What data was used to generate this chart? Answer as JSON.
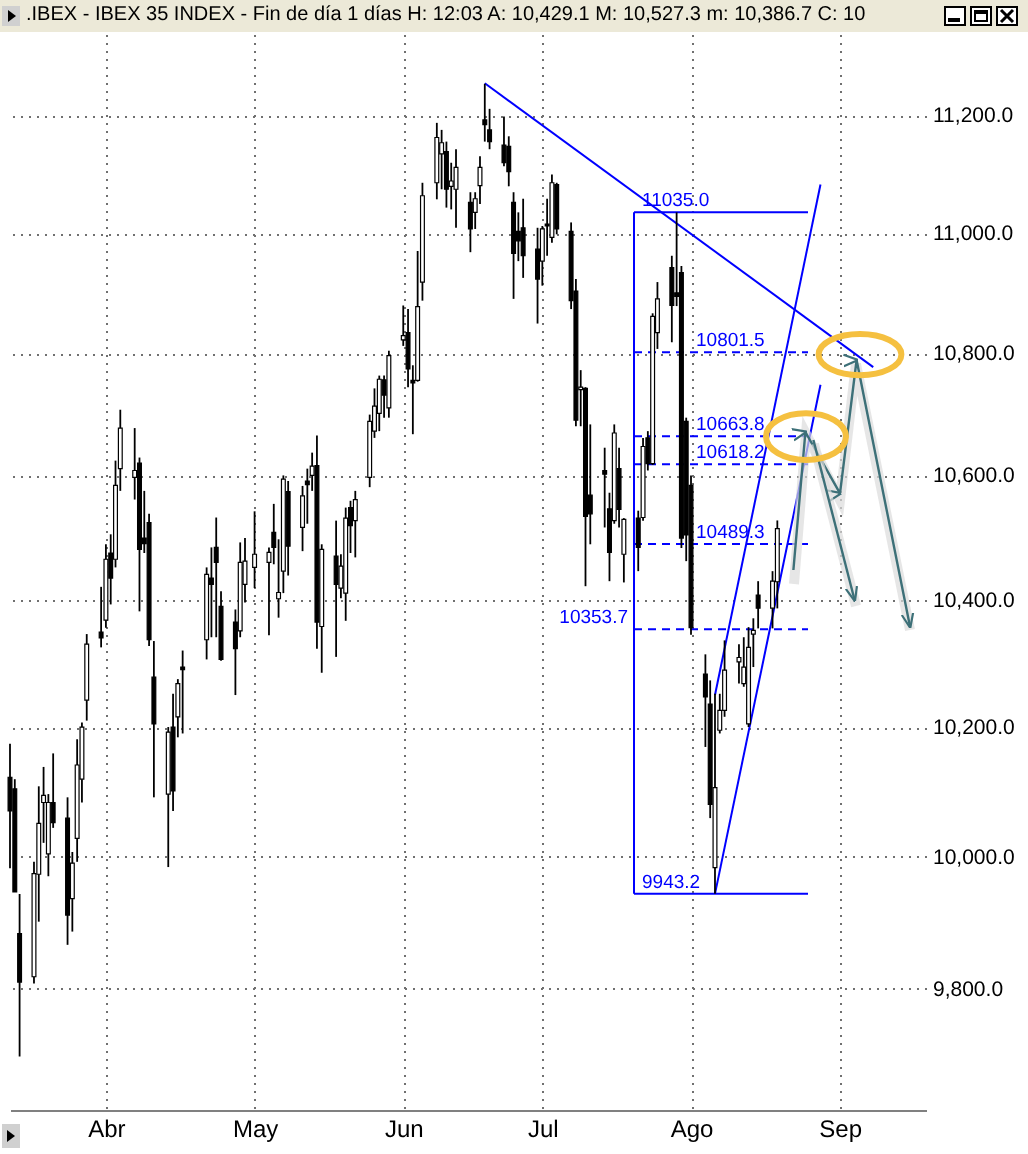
{
  "chart_data": {
    "type": "candlestick",
    "title": ".IBEX - IBEX 35 INDEX - Fin de día 1 días  H: 12:03  A: 10,429.1  M: 10,527.3  m: 10,386.7  C: 10",
    "color": "#000000",
    "log": "y",
    "grid": true,
    "ylim": [
      9620,
      11340
    ],
    "yticks": [
      {
        "value": 9800,
        "label": "9,800.0"
      },
      {
        "value": 10000,
        "label": "10,000.0"
      },
      {
        "value": 10200,
        "label": "10,200.0"
      },
      {
        "value": 10400,
        "label": "10,400.0"
      },
      {
        "value": 10600,
        "label": "10,600.0"
      },
      {
        "value": 10800,
        "label": "10,800.0"
      },
      {
        "value": 11000,
        "label": "11,000.0"
      },
      {
        "value": 11200,
        "label": "11,200.0"
      }
    ],
    "xlim": [
      "--03-12",
      "--09-19"
    ],
    "xticks": [
      {
        "value": "--04-01",
        "label": "Abr"
      },
      {
        "value": "--05-02",
        "label": "May"
      },
      {
        "value": "--06-02",
        "label": "Jun"
      },
      {
        "value": "--07-01",
        "label": "Jul"
      },
      {
        "value": "--08-01",
        "label": "Ago"
      },
      {
        "value": "--09-01",
        "label": "Sep"
      }
    ],
    "x": [
      "--03-12",
      "--03-13",
      "--03-14",
      "--03-17",
      "--03-18",
      "--03-19",
      "--03-20",
      "--03-21",
      "--03-24",
      "--03-25",
      "--03-26",
      "--03-27",
      "--03-28",
      "--03-31",
      "--04-01",
      "--04-02",
      "--04-03",
      "--04-04",
      "--04-07",
      "--04-08",
      "--04-09",
      "--04-10",
      "--04-11",
      "--04-14",
      "--04-15",
      "--04-16",
      "--04-17",
      "--04-22",
      "--04-23",
      "--04-24",
      "--04-25",
      "--04-28",
      "--04-29",
      "--04-30",
      "--05-02",
      "--05-05",
      "--05-06",
      "--05-07",
      "--05-08",
      "--05-09",
      "--05-12",
      "--05-13",
      "--05-14",
      "--05-15",
      "--05-16",
      "--05-19",
      "--05-20",
      "--05-21",
      "--05-22",
      "--05-23",
      "--05-26",
      "--05-27",
      "--05-28",
      "--05-29",
      "--05-30",
      "--06-02",
      "--06-03",
      "--06-04",
      "--06-05",
      "--06-06",
      "--06-09",
      "--06-10",
      "--06-11",
      "--06-12",
      "--06-13",
      "--06-16",
      "--06-17",
      "--06-18",
      "--06-19",
      "--06-20",
      "--06-23",
      "--06-24",
      "--06-25",
      "--06-26",
      "--06-27",
      "--06-30",
      "--07-01",
      "--07-02",
      "--07-03",
      "--07-04",
      "--07-07",
      "--07-08",
      "--07-09",
      "--07-10",
      "--07-11",
      "--07-14",
      "--07-15",
      "--07-16",
      "--07-17",
      "--07-18",
      "--07-21",
      "--07-22",
      "--07-23",
      "--07-24",
      "--07-25",
      "--07-28",
      "--07-29",
      "--07-30",
      "--07-31",
      "--08-01",
      "--08-04",
      "--08-05",
      "--08-06",
      "--08-07",
      "--08-08",
      "--08-11",
      "--08-12",
      "--08-13",
      "--08-14",
      "--08-15",
      "--08-18",
      "--08-19"
    ],
    "ohlc": [
      [
        10122,
        10174,
        9982,
        10070
      ],
      [
        10104,
        10119,
        9946,
        9946
      ],
      [
        9883,
        9943,
        9699,
        9810
      ],
      [
        9818,
        9992,
        9808,
        9974
      ],
      [
        9973,
        10108,
        9901,
        10051
      ],
      [
        10083,
        10138,
        10021,
        10094
      ],
      [
        10004,
        10096,
        9970,
        10083
      ],
      [
        10083,
        10159,
        10044,
        10052
      ],
      [
        10059,
        10091,
        9866,
        9911
      ],
      [
        9936,
        10007,
        9886,
        9990
      ],
      [
        10028,
        10181,
        9992,
        10141
      ],
      [
        10119,
        10207,
        10083,
        10200
      ],
      [
        10242,
        10346,
        10210,
        10330
      ],
      [
        10349,
        10421,
        10325,
        10340
      ],
      [
        10368,
        10489,
        10356,
        10465
      ],
      [
        10475,
        10505,
        10393,
        10435
      ],
      [
        10465,
        10624,
        10452,
        10584
      ],
      [
        10611,
        10707,
        10575,
        10677
      ],
      [
        10597,
        10677,
        10561,
        10608
      ],
      [
        10620,
        10629,
        10382,
        10481
      ],
      [
        10499,
        10575,
        10475,
        10490
      ],
      [
        10524,
        10538,
        10327,
        10337
      ],
      [
        10278,
        10335,
        10091,
        10205
      ],
      [
        10096,
        10200,
        9984,
        10192
      ],
      [
        10200,
        10252,
        10070,
        10101
      ],
      [
        10216,
        10275,
        10184,
        10268
      ],
      [
        10294,
        10320,
        10190,
        10290
      ],
      [
        10337,
        10452,
        10306,
        10441
      ],
      [
        10435,
        10484,
        10341,
        10425
      ],
      [
        10484,
        10532,
        10341,
        10460
      ],
      [
        10390,
        10414,
        10304,
        10306
      ],
      [
        10365,
        10385,
        10250,
        10323
      ],
      [
        10351,
        10492,
        10341,
        10460
      ],
      [
        10425,
        10499,
        10396,
        10462
      ],
      [
        10452,
        10542,
        10419,
        10473
      ],
      [
        10460,
        10484,
        10344,
        10476
      ],
      [
        10508,
        10554,
        10457,
        10484
      ],
      [
        10402,
        10497,
        10372,
        10412
      ],
      [
        10446,
        10600,
        10411,
        10594
      ],
      [
        10574,
        10591,
        10439,
        10486
      ],
      [
        10516,
        10583,
        10478,
        10567
      ],
      [
        10591,
        10611,
        10522,
        10585
      ],
      [
        10600,
        10637,
        10575,
        10615
      ],
      [
        10616,
        10665,
        10323,
        10365
      ],
      [
        10358,
        10489,
        10285,
        10481
      ],
      [
        10470,
        10527,
        10310,
        10425
      ],
      [
        10419,
        10473,
        10403,
        10454
      ],
      [
        10411,
        10548,
        10367,
        10531
      ],
      [
        10548,
        10559,
        10475,
        10519
      ],
      [
        10527,
        10575,
        10468,
        10561
      ],
      [
        10597,
        10699,
        10581,
        10688
      ],
      [
        10672,
        10742,
        10661,
        10713
      ],
      [
        10701,
        10763,
        10672,
        10757
      ],
      [
        10756,
        10763,
        10694,
        10731
      ],
      [
        10710,
        10804,
        10694,
        10796
      ],
      [
        10822,
        10879,
        10812,
        10829
      ],
      [
        10834,
        10873,
        10744,
        10774
      ],
      [
        10755,
        10780,
        10667,
        10751
      ],
      [
        10755,
        10970,
        10753,
        10877
      ],
      [
        10918,
        11085,
        10887,
        11063
      ],
      [
        11085,
        11187,
        11057,
        11162
      ],
      [
        11134,
        11175,
        11074,
        11153
      ],
      [
        11138,
        11155,
        11043,
        11074
      ],
      [
        11079,
        11119,
        11040,
        11088
      ],
      [
        11074,
        11142,
        11009,
        11111
      ],
      [
        11052,
        11069,
        10968,
        11007
      ],
      [
        11035,
        11069,
        11007,
        11058
      ],
      [
        11080,
        11130,
        11049,
        11111
      ],
      [
        11192,
        11254,
        11155,
        11184
      ],
      [
        11175,
        11211,
        11142,
        11155
      ],
      [
        11149,
        11198,
        11113,
        11119
      ],
      [
        11147,
        11164,
        11079,
        11104
      ],
      [
        11052,
        11069,
        10890,
        10966
      ],
      [
        11003,
        11035,
        10953,
        10987
      ],
      [
        11009,
        11058,
        10925,
        10962
      ],
      [
        10973,
        11009,
        10849,
        10923
      ],
      [
        10953,
        11012,
        10912,
        11007
      ],
      [
        11015,
        11058,
        10962,
        11012
      ],
      [
        10993,
        11099,
        10984,
        11085
      ],
      [
        11082,
        11085,
        10998,
        11007
      ],
      [
        11003,
        11018,
        10873,
        10887
      ],
      [
        10903,
        10923,
        10680,
        10690
      ],
      [
        10740,
        10772,
        10680,
        10744
      ],
      [
        10742,
        10744,
        10422,
        10534
      ],
      [
        10568,
        10683,
        10489,
        10538
      ],
      [
        10608,
        10645,
        10516,
        10602
      ],
      [
        10546,
        10572,
        10430,
        10476
      ],
      [
        10527,
        10683,
        10522,
        10669
      ],
      [
        10611,
        10645,
        10516,
        10545
      ],
      [
        10473,
        10531,
        10428,
        10529
      ],
      [
        10531,
        10543,
        10446,
        10484
      ],
      [
        10532,
        10661,
        10527,
        10647
      ],
      [
        10661,
        10672,
        10608,
        10619
      ],
      [
        10619,
        10866,
        10617,
        10861
      ],
      [
        10834,
        10918,
        10807,
        10890
      ],
      [
        10942,
        10962,
        10818,
        10879
      ],
      [
        10900,
        11035,
        10878,
        10894
      ],
      [
        10934,
        10945,
        10483,
        10499
      ],
      [
        10688,
        10694,
        10462,
        10504
      ],
      [
        10584,
        10600,
        10345,
        10356
      ],
      [
        10283,
        10314,
        10169,
        10247
      ],
      [
        10236,
        10273,
        10059,
        10080
      ],
      [
        9983,
        10252,
        9943.2,
        10106
      ],
      [
        10195,
        10252,
        10190,
        10226
      ],
      [
        10226,
        10336,
        10216,
        10289
      ],
      [
        10302,
        10330,
        10268,
        10309
      ],
      [
        10268,
        10341,
        10263,
        10294
      ],
      [
        10205,
        10357,
        10200,
        10325
      ],
      [
        10346,
        10371,
        10294,
        10352
      ],
      [
        10408,
        10430,
        10355,
        10387
      ],
      [
        10387,
        10446,
        10355,
        10430
      ],
      [
        10429.1,
        10527.3,
        10386.7,
        10514
      ]
    ],
    "series": [
      {
        "type": "line",
        "color": "#0000ff",
        "x": [
          "--06-19",
          "--09-08"
        ],
        "values": [
          11255,
          10777
        ]
      },
      {
        "type": "line",
        "color": "#0000ff",
        "x": [
          "--08-06",
          "--08-28"
        ],
        "values": [
          10250,
          11082
        ]
      },
      {
        "type": "line",
        "color": "#0000ff",
        "x": [
          "--08-06",
          "--08-28"
        ],
        "values": [
          9943.2,
          10748
        ]
      }
    ],
    "ref_lines": [
      {
        "axis": "y",
        "value": 11035.0,
        "label": "11035.0",
        "color": "#0000ff",
        "line_style": "solid"
      },
      {
        "axis": "y",
        "value": 10801.5,
        "label": "10801.5",
        "color": "#0000ff",
        "line_style": "dashed"
      },
      {
        "axis": "y",
        "value": 10663.8,
        "label": "10663.8",
        "color": "#0000ff",
        "line_style": "dashed"
      },
      {
        "axis": "y",
        "value": 10618.2,
        "label": "10618.2",
        "color": "#0000ff",
        "line_style": "dashed"
      },
      {
        "axis": "y",
        "value": 10489.3,
        "label": "10489.3",
        "color": "#0000ff",
        "line_style": "dashed"
      },
      {
        "axis": "y",
        "value": 10353.7,
        "label": "10353.7",
        "color": "#0000ff",
        "line_style": "dashed"
      },
      {
        "axis": "y",
        "value": 9943.2,
        "label": "9943.2",
        "color": "#0000ff",
        "line_style": "solid"
      }
    ]
  }
}
